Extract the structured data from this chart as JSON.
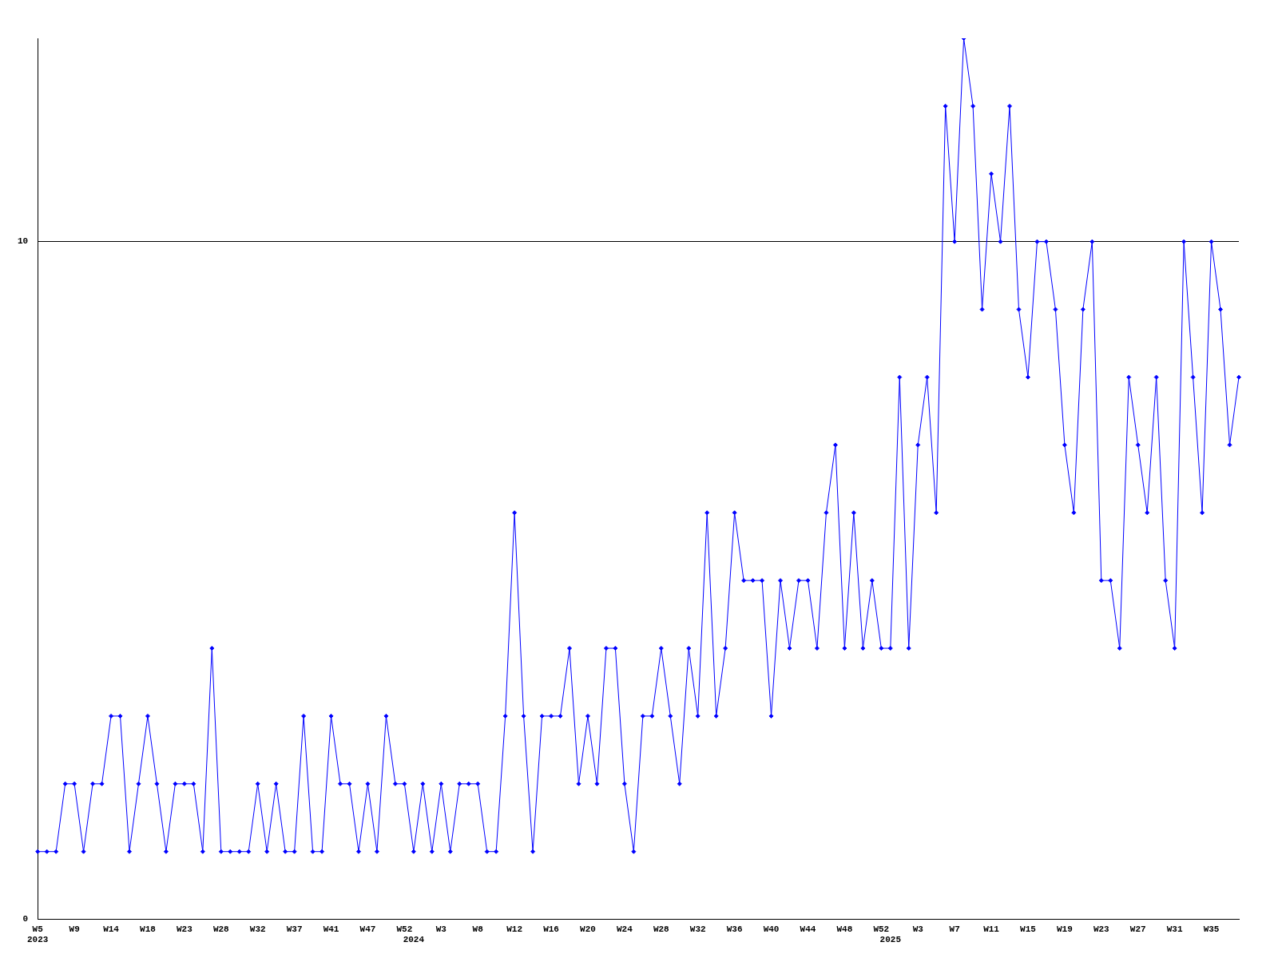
{
  "chart_data": {
    "type": "line",
    "categories": [
      "W5\n2023",
      null,
      null,
      null,
      "W9",
      null,
      null,
      null,
      "W14",
      null,
      null,
      null,
      "W18",
      null,
      null,
      null,
      "W23",
      null,
      null,
      null,
      "W28",
      null,
      null,
      null,
      "W32",
      null,
      null,
      null,
      "W37",
      null,
      null,
      null,
      "W41",
      null,
      null,
      null,
      "W47",
      null,
      null,
      null,
      "W52",
      "\n2024",
      null,
      null,
      "W3",
      null,
      null,
      null,
      "W8",
      null,
      null,
      null,
      "W12",
      null,
      null,
      null,
      "W16",
      null,
      null,
      null,
      "W20",
      null,
      null,
      null,
      "W24",
      null,
      null,
      null,
      "W28",
      null,
      null,
      null,
      "W32",
      null,
      null,
      null,
      "W36",
      null,
      null,
      null,
      "W40",
      null,
      null,
      null,
      "W44",
      null,
      null,
      null,
      "W48",
      null,
      null,
      null,
      "W52",
      "\n2025",
      null,
      null,
      "W3",
      null,
      null,
      null,
      "W7",
      null,
      null,
      null,
      "W11",
      null,
      null,
      null,
      "W15",
      null,
      null,
      null,
      "W19",
      null,
      null,
      null,
      "W23",
      null,
      null,
      null,
      "W27",
      null,
      null,
      null,
      "W31",
      null,
      null,
      null,
      "W35",
      null,
      null,
      null
    ],
    "series": [
      {
        "color": "#0000ff",
        "values": [
          1,
          1,
          1,
          2,
          2,
          1,
          2,
          2,
          3,
          3,
          1,
          2,
          3,
          2,
          1,
          2,
          2,
          2,
          1,
          4,
          1,
          1,
          1,
          1,
          2,
          1,
          2,
          1,
          1,
          3,
          1,
          1,
          3,
          2,
          2,
          1,
          2,
          1,
          3,
          2,
          2,
          1,
          2,
          1,
          2,
          1,
          2,
          2,
          2,
          1,
          1,
          3,
          6,
          3,
          1,
          3,
          3,
          3,
          4,
          2,
          3,
          2,
          4,
          4,
          2,
          1,
          3,
          3,
          4,
          3,
          2,
          4,
          3,
          6,
          3,
          4,
          6,
          5,
          5,
          5,
          3,
          5,
          4,
          5,
          5,
          4,
          6,
          7,
          4,
          6,
          4,
          5,
          4,
          4,
          8,
          4,
          7,
          8,
          6,
          12,
          10,
          13,
          12,
          9,
          11,
          10,
          12,
          9,
          8,
          10,
          10,
          9,
          7,
          6,
          9,
          10,
          5,
          5,
          4,
          8,
          7,
          6,
          8,
          5,
          4,
          10,
          8,
          6,
          10,
          9,
          7,
          8
        ]
      }
    ],
    "ylim": [
      0,
      13
    ],
    "yticks": [
      0,
      10
    ],
    "grid": "y",
    "legend": false,
    "marker": "diamond",
    "line_style": "solid"
  }
}
